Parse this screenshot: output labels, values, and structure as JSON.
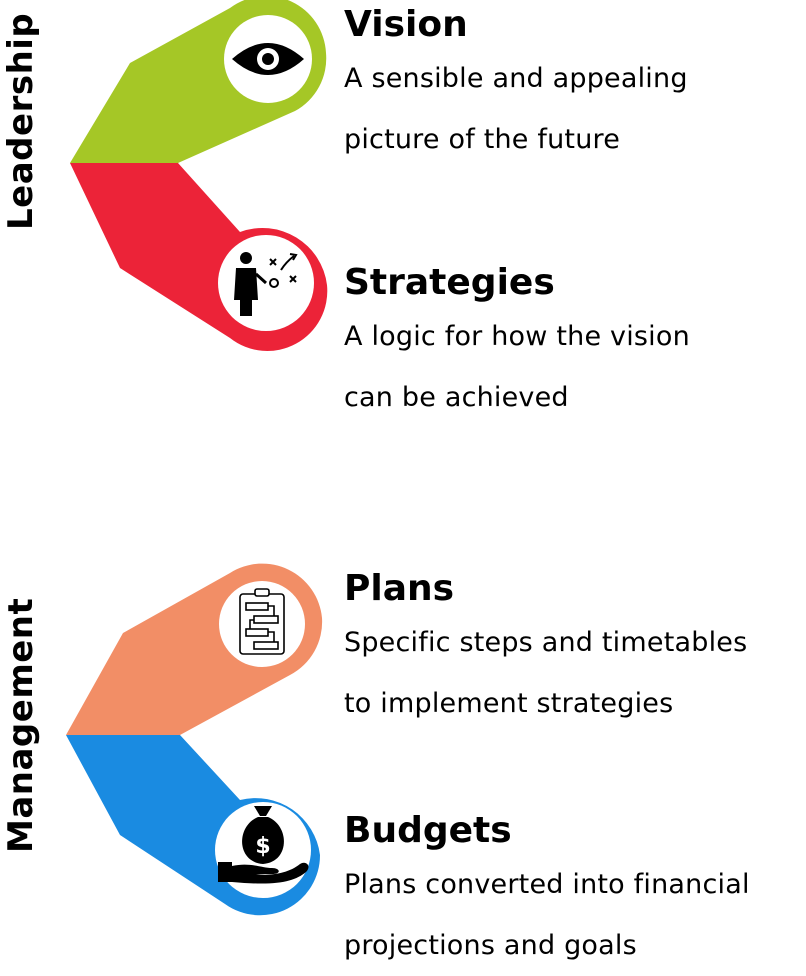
{
  "groups": [
    {
      "label": "Leadership",
      "items": [
        {
          "title": "Vision",
          "desc_line1": "A sensible and appealing",
          "desc_line2": "picture of the future",
          "color": "#a5c726",
          "icon": "eye-icon"
        },
        {
          "title": "Strategies",
          "desc_line1": "A logic for how the vision",
          "desc_line2": "can be achieved",
          "color": "#ec2338",
          "icon": "strategy-icon"
        }
      ]
    },
    {
      "label": "Management",
      "items": [
        {
          "title": "Plans",
          "desc_line1": "Specific steps and timetables",
          "desc_line2": "to implement strategies",
          "color": "#f28e66",
          "icon": "checklist-icon"
        },
        {
          "title": "Budgets",
          "desc_line1": "Plans converted into financial",
          "desc_line2": "projections and goals",
          "color": "#1a8be1",
          "icon": "money-bag-icon"
        }
      ]
    }
  ]
}
